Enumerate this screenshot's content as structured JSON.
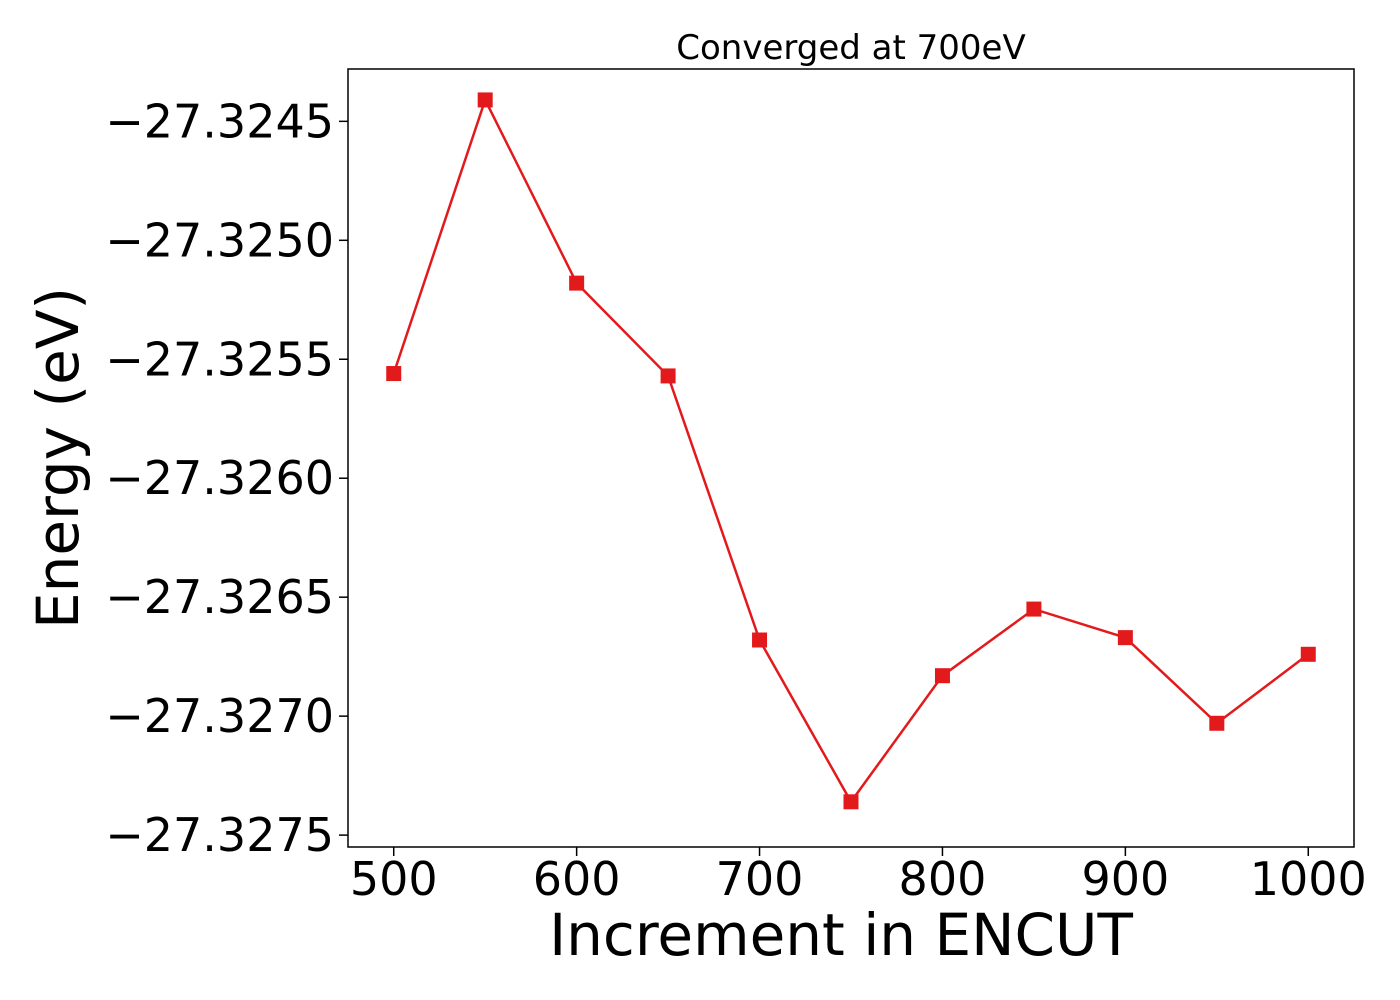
{
  "chart_data": {
    "type": "line",
    "title": "Converged at 700eV",
    "xlabel": "Increment in ENCUT",
    "ylabel": "Energy (eV)",
    "xlim": [
      475,
      1025
    ],
    "ylim": [
      -27.32755,
      -27.32428
    ],
    "xticks": [
      500,
      600,
      700,
      800,
      900,
      1000
    ],
    "xtick_labels": [
      "500",
      "600",
      "700",
      "800",
      "900",
      "1000"
    ],
    "yticks": [
      -27.3245,
      -27.325,
      -27.3255,
      -27.326,
      -27.3265,
      -27.327,
      -27.3275
    ],
    "ytick_labels": [
      "−27.3245",
      "−27.3250",
      "−27.3255",
      "−27.3260",
      "−27.3265",
      "−27.3270",
      "−27.3275"
    ],
    "grid": false,
    "series": [
      {
        "color": "#e31a1c",
        "marker": "square",
        "x": [
          500,
          550,
          600,
          650,
          700,
          750,
          800,
          850,
          900,
          950,
          1000
        ],
        "y": [
          -27.32556,
          -27.32441,
          -27.32518,
          -27.32557,
          -27.32668,
          -27.32736,
          -27.32683,
          -27.32655,
          -27.32667,
          -27.32703,
          -27.32674
        ]
      }
    ]
  }
}
